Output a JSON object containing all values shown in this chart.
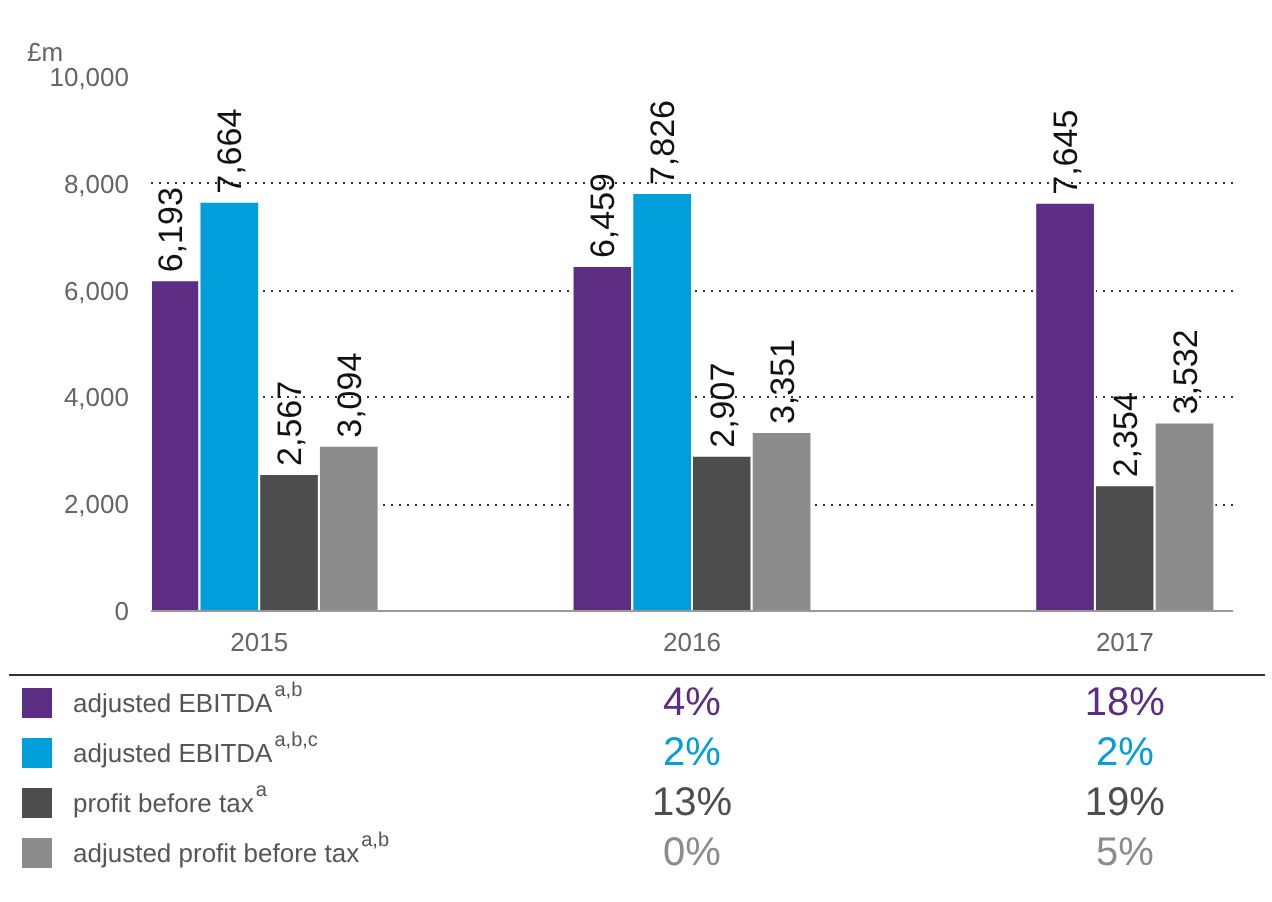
{
  "chart_data": {
    "type": "bar",
    "ylabel": "£m",
    "categories": [
      "2015",
      "2016",
      "2017"
    ],
    "series": [
      {
        "name": "adjusted EBITDA$^{a,b}$",
        "color": "#5c2d82",
        "values": [
          6193,
          6459,
          7645
        ],
        "value_labels": [
          "6,193",
          "6,459",
          "7,645"
        ]
      },
      {
        "name": "adjusted EBITDA$^{a,b,c}$",
        "color": "#009fdb",
        "values": [
          7664,
          7826,
          null
        ],
        "value_labels": [
          "7,664",
          "7,826",
          null
        ]
      },
      {
        "name": "profit before tax$^{a}$",
        "color": "#4d4d4d",
        "values": [
          2567,
          2907,
          2354
        ],
        "value_labels": [
          "2,567",
          "2,907",
          "2,354"
        ]
      },
      {
        "name": "adjusted profit before tax$^{a,b}$",
        "color": "#8c8c8c",
        "values": [
          3094,
          3351,
          3532
        ],
        "value_labels": [
          "3,094",
          "3,351",
          "3,532"
        ]
      }
    ],
    "ylim": [
      0,
      10000
    ],
    "yticks": [
      0,
      {
        "value": 2000,
        "label": "2,000"
      },
      {
        "value": 4000,
        "label": "4,000"
      },
      {
        "value": 6000,
        "label": "6,000"
      },
      {
        "value": 8000,
        "label": "8,000"
      },
      {
        "value": 10000,
        "label": "10,000"
      }
    ],
    "grid": "y",
    "legend": "bottom",
    "annotations": [
      "4%",
      "18%",
      "2%",
      "2%",
      "13%",
      "19%",
      "0%",
      "5%"
    ]
  }
}
